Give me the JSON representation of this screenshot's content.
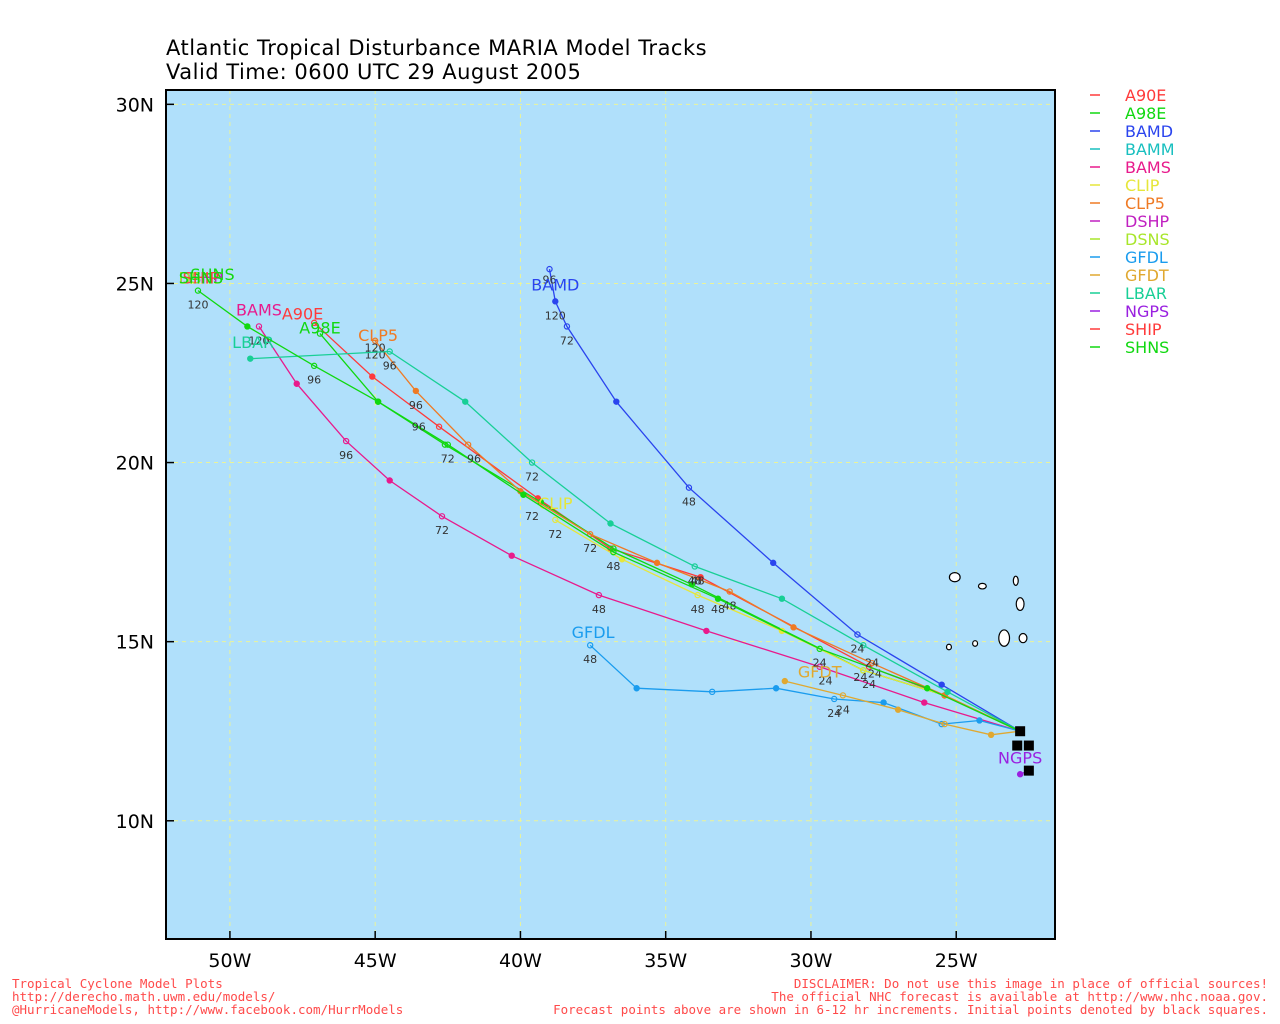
{
  "title": {
    "line1": "Atlantic Tropical Disturbance MARIA Model Tracks",
    "line2": "Valid Time: 0600 UTC 29 August 2005"
  },
  "footer": {
    "left": [
      "Tropical Cyclone Model Plots",
      "http://derecho.math.uwm.edu/models/",
      "@HurricaneModels, http://www.facebook.com/HurrModels"
    ],
    "right": [
      "DISCLAIMER: Do not use this image in place of official sources!",
      "The official NHC forecast is available at http://www.nhc.noaa.gov.",
      "Forecast points above are shown in 6-12 hr increments. Initial points denoted by black squares."
    ]
  },
  "colors": {
    "ocean": "#b0e0fb",
    "grid": "#eaf39a",
    "frame": "#000000"
  },
  "chart_data": {
    "type": "line",
    "xlim": [
      -52.2,
      -21.6
    ],
    "ylim": [
      6.7,
      30.4
    ],
    "x_ticks": [
      -50,
      -45,
      -40,
      -35,
      -30,
      -25
    ],
    "x_tick_labels": [
      "50W",
      "45W",
      "40W",
      "35W",
      "30W",
      "25W"
    ],
    "y_ticks": [
      10,
      15,
      20,
      25,
      30
    ],
    "y_tick_labels": [
      "10N",
      "15N",
      "20N",
      "25N",
      "30N"
    ],
    "grid": true,
    "legend_position": "right",
    "initial_points": [
      {
        "lon": -22.8,
        "lat": 12.5
      },
      {
        "lon": -22.9,
        "lat": 12.1
      },
      {
        "lon": -22.5,
        "lat": 12.1
      },
      {
        "lon": -22.5,
        "lat": 11.4
      }
    ],
    "series": [
      {
        "name": "A90E",
        "color": "#ff3a3a",
        "label_lon": -47.5,
        "label_lat": 24.0,
        "points": [
          [
            -22.8,
            12.5
          ],
          [
            -25.4,
            13.5
          ],
          [
            -28.0,
            14.3
          ],
          [
            -33.8,
            16.8
          ],
          [
            -36.9,
            17.6
          ],
          [
            -39.4,
            19.0
          ],
          [
            -42.8,
            21.0
          ],
          [
            -45.1,
            22.4
          ],
          [
            -47.1,
            23.9
          ]
        ],
        "labels": []
      },
      {
        "name": "A98E",
        "color": "#10d810",
        "label_lon": -46.9,
        "label_lat": 23.6,
        "points": [
          [
            -22.8,
            12.5
          ],
          [
            -25.4,
            13.5
          ],
          [
            -28.2,
            14.2
          ],
          [
            -34.1,
            16.6
          ],
          [
            -36.8,
            17.6
          ],
          [
            -39.3,
            18.9
          ],
          [
            -42.6,
            20.5
          ],
          [
            -44.9,
            21.7
          ],
          [
            -46.9,
            23.6
          ]
        ],
        "labels": []
      },
      {
        "name": "BAMD",
        "color": "#2a44ee",
        "label_lon": -38.8,
        "label_lat": 24.8,
        "points": [
          [
            -22.8,
            12.5
          ],
          [
            -25.5,
            13.8
          ],
          [
            -28.4,
            15.2
          ],
          [
            -31.3,
            17.2
          ],
          [
            -34.2,
            19.3
          ],
          [
            -36.7,
            21.7
          ],
          [
            -38.4,
            23.8
          ],
          [
            -38.8,
            24.5
          ],
          [
            -39.0,
            25.4
          ]
        ],
        "labels": [
          [
            "48",
            -34.2,
            18.8
          ],
          [
            "72",
            -38.4,
            23.3
          ],
          [
            "96",
            -39.0,
            25.0
          ],
          [
            "120",
            -38.8,
            24.0
          ]
        ]
      },
      {
        "name": "BAMM",
        "color": "#18bfbf",
        "label_lon": -38.0,
        "label_lat": 24.3,
        "points": [],
        "labels": []
      },
      {
        "name": "BAMS",
        "color": "#e81a8c",
        "label_lon": -49.0,
        "label_lat": 24.1,
        "points": [
          [
            -22.8,
            12.5
          ],
          [
            -26.1,
            13.3
          ],
          [
            -29.7,
            14.3
          ],
          [
            -33.6,
            15.3
          ],
          [
            -37.3,
            16.3
          ],
          [
            -40.3,
            17.4
          ],
          [
            -42.7,
            18.5
          ],
          [
            -44.5,
            19.5
          ],
          [
            -46.0,
            20.6
          ],
          [
            -47.7,
            22.2
          ],
          [
            -49.0,
            23.8
          ]
        ],
        "labels": [
          [
            "24",
            -29.5,
            13.8
          ],
          [
            "48",
            -37.3,
            15.8
          ],
          [
            "72",
            -42.7,
            18.0
          ],
          [
            "96",
            -46.0,
            20.1
          ],
          [
            "120",
            -49.0,
            23.3
          ]
        ]
      },
      {
        "name": "CLIP",
        "color": "#e6e63a",
        "label_lon": -38.8,
        "label_lat": 18.7,
        "points": [
          [
            -22.8,
            12.5
          ],
          [
            -25.4,
            13.5
          ],
          [
            -28.2,
            14.2
          ],
          [
            -31.0,
            15.3
          ],
          [
            -33.9,
            16.3
          ],
          [
            -36.5,
            17.3
          ],
          [
            -38.8,
            18.4
          ]
        ],
        "labels": [
          [
            "24",
            -28.0,
            13.7
          ],
          [
            "48",
            -33.9,
            15.8
          ],
          [
            "72",
            -38.8,
            17.9
          ]
        ]
      },
      {
        "name": "CLP5",
        "color": "#ef7a24",
        "label_lon": -44.9,
        "label_lat": 23.4,
        "points": [
          [
            -22.8,
            12.5
          ],
          [
            -25.4,
            13.5
          ],
          [
            -27.9,
            14.4
          ],
          [
            -30.6,
            15.4
          ],
          [
            -32.8,
            16.4
          ],
          [
            -35.3,
            17.2
          ],
          [
            -37.6,
            18.0
          ],
          [
            -40.0,
            19.2
          ],
          [
            -41.8,
            20.5
          ],
          [
            -43.6,
            22.0
          ],
          [
            -45.0,
            23.4
          ]
        ],
        "labels": [
          [
            "24",
            -27.8,
            14.0
          ],
          [
            "48",
            -32.8,
            15.9
          ],
          [
            "72",
            -37.6,
            17.5
          ],
          [
            "96",
            -43.6,
            21.5
          ],
          [
            "120",
            -45.0,
            22.9
          ]
        ]
      },
      {
        "name": "DSHP",
        "color": "#c020c0",
        "label_lon": -48.0,
        "label_lat": 25.7,
        "points": [],
        "labels": []
      },
      {
        "name": "DSNS",
        "color": "#a8e62a",
        "label_lon": -48.0,
        "label_lat": 25.4,
        "points": [],
        "labels": []
      },
      {
        "name": "GFDL",
        "color": "#1a9cee",
        "label_lon": -37.5,
        "label_lat": 15.1,
        "points": [
          [
            -22.8,
            12.5
          ],
          [
            -24.2,
            12.8
          ],
          [
            -25.5,
            12.7
          ],
          [
            -27.5,
            13.3
          ],
          [
            -29.2,
            13.4
          ],
          [
            -31.2,
            13.7
          ],
          [
            -33.4,
            13.6
          ],
          [
            -36.0,
            13.7
          ],
          [
            -37.6,
            14.9
          ]
        ],
        "labels": [
          [
            "24",
            -29.2,
            12.9
          ],
          [
            "48",
            -37.6,
            14.4
          ]
        ]
      },
      {
        "name": "GFDT",
        "color": "#e0a830",
        "label_lon": -29.7,
        "label_lat": 14.0,
        "points": [
          [
            -22.8,
            12.5
          ],
          [
            -23.8,
            12.4
          ],
          [
            -25.4,
            12.7
          ],
          [
            -27.0,
            13.1
          ],
          [
            -28.9,
            13.5
          ],
          [
            -30.9,
            13.9
          ]
        ],
        "labels": [
          [
            "24",
            -28.9,
            13.0
          ]
        ]
      },
      {
        "name": "LBAR",
        "color": "#18cf96",
        "label_lon": -49.2,
        "label_lat": 23.2,
        "points": [
          [
            -22.8,
            12.5
          ],
          [
            -25.3,
            13.6
          ],
          [
            -28.2,
            14.9
          ],
          [
            -31.0,
            16.2
          ],
          [
            -34.0,
            17.1
          ],
          [
            -36.9,
            18.3
          ],
          [
            -39.6,
            20.0
          ],
          [
            -41.9,
            21.7
          ],
          [
            -44.5,
            23.1
          ],
          [
            -49.3,
            22.9
          ]
        ],
        "labels": [
          [
            "24",
            -28.4,
            14.7
          ],
          [
            "48",
            -34.0,
            16.6
          ],
          [
            "72",
            -39.6,
            19.5
          ],
          [
            "96",
            -44.5,
            22.6
          ],
          [
            "120",
            -45.0,
            23.1
          ]
        ]
      },
      {
        "name": "NGPS",
        "color": "#9a20e0",
        "label_lon": -22.8,
        "label_lat": 11.6,
        "points": [
          [
            -22.5,
            11.4
          ],
          [
            -22.8,
            11.3
          ]
        ],
        "labels": []
      },
      {
        "name": "SHIP",
        "color": "#ff3a3a",
        "label_lon": -50.6,
        "label_lat": 25.1,
        "points": [],
        "labels": []
      },
      {
        "name": "SHNS",
        "color": "#10d810",
        "label_lon": -50.6,
        "label_lat": 25.1,
        "points": [
          [
            -22.8,
            12.5
          ],
          [
            -26.0,
            13.7
          ],
          [
            -29.7,
            14.8
          ],
          [
            -33.2,
            16.2
          ],
          [
            -36.8,
            17.5
          ],
          [
            -39.9,
            19.1
          ],
          [
            -42.5,
            20.5
          ],
          [
            -44.9,
            21.7
          ],
          [
            -47.1,
            22.7
          ],
          [
            -49.4,
            23.8
          ],
          [
            -51.1,
            24.8
          ]
        ],
        "labels": [
          [
            "24",
            -29.7,
            14.3
          ],
          [
            "48",
            -36.8,
            17.0
          ],
          [
            "72",
            -42.5,
            20.0
          ],
          [
            "96",
            -47.1,
            22.2
          ],
          [
            "120",
            -51.1,
            24.3
          ],
          [
            "96",
            -43.5,
            20.9
          ],
          [
            "96",
            -41.6,
            20.0
          ],
          [
            "72",
            -39.6,
            18.4
          ],
          [
            "48",
            -33.9,
            16.6
          ],
          [
            "48",
            -33.2,
            15.8
          ],
          [
            "24",
            -28.3,
            13.9
          ],
          [
            "24",
            -27.9,
            14.3
          ]
        ]
      }
    ]
  }
}
